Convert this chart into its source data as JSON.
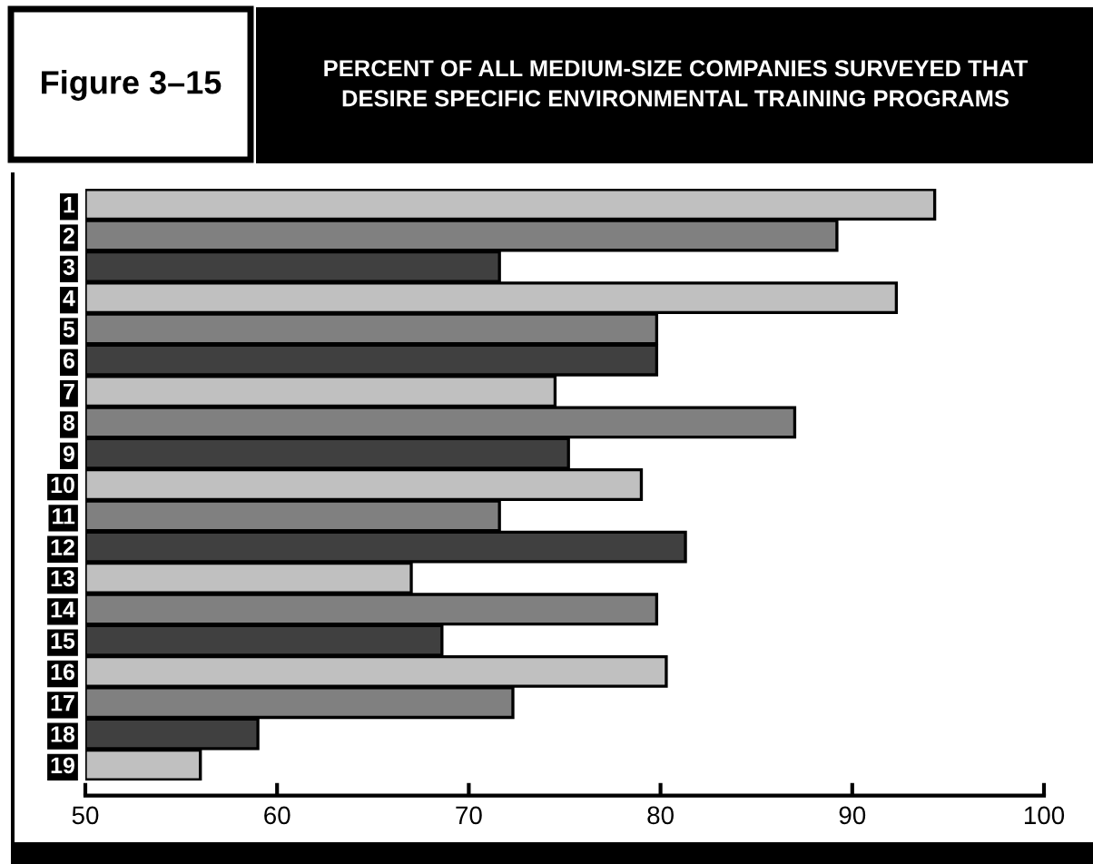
{
  "chart_data": {
    "type": "bar",
    "orientation": "horizontal",
    "title": "Figure 3–15",
    "subtitle": "PERCENT OF ALL MEDIUM-SIZE COMPANIES SURVEYED THAT\nDESIRE SPECIFIC ENVIRONMENTAL TRAINING PROGRAMS",
    "categories": [
      "1",
      "2",
      "3",
      "4",
      "5",
      "6",
      "7",
      "8",
      "9",
      "10",
      "11",
      "12",
      "13",
      "14",
      "15",
      "16",
      "17",
      "18",
      "19"
    ],
    "values": [
      94.3,
      89.2,
      71.6,
      92.3,
      79.8,
      79.8,
      74.5,
      87.0,
      75.2,
      79.0,
      71.6,
      81.3,
      67.0,
      79.8,
      68.6,
      80.3,
      72.3,
      59.0,
      56.0
    ],
    "colors": [
      "#c0c0c0",
      "#808080",
      "#404040",
      "#c0c0c0",
      "#808080",
      "#404040",
      "#c0c0c0",
      "#808080",
      "#404040",
      "#c0c0c0",
      "#808080",
      "#404040",
      "#c0c0c0",
      "#808080",
      "#404040",
      "#c0c0c0",
      "#808080",
      "#404040",
      "#c0c0c0"
    ],
    "xlim": [
      50,
      100
    ],
    "xticks": [
      50,
      60,
      70,
      80,
      90,
      100
    ]
  }
}
